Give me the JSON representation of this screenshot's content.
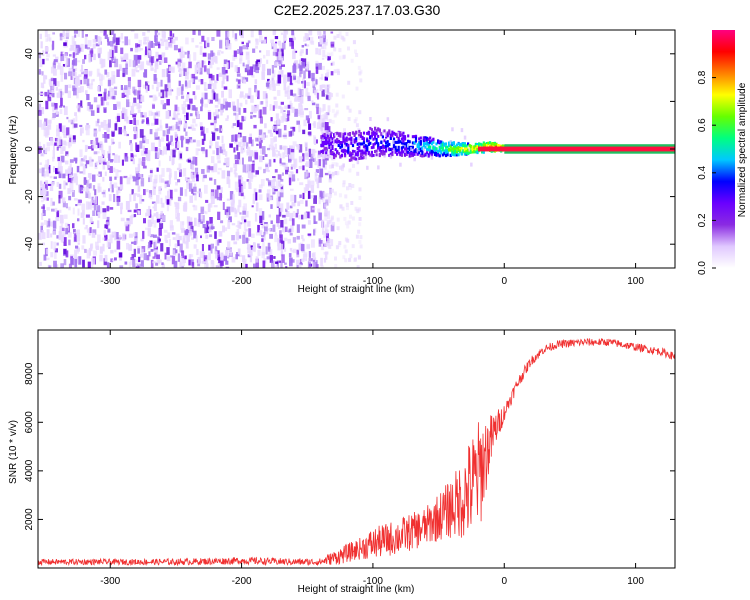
{
  "figure_title": "C2E2.2025.237.17.03.G30",
  "chart_data": [
    {
      "type": "heatmap",
      "name": "spectrogram",
      "xlabel": "Height of straight line (km)",
      "ylabel": "Frequency (Hz)",
      "xlim": [
        -355,
        130
      ],
      "ylim": [
        -50,
        50
      ],
      "x_ticks": [
        -300,
        -200,
        -100,
        0,
        100
      ],
      "y_ticks": [
        -40,
        -20,
        0,
        20,
        40
      ],
      "noise_region_x": [
        -355,
        -140
      ],
      "signal_onset_x": -140,
      "signal_track": {
        "x": [
          -140,
          -120,
          -100,
          -80,
          -60,
          -40,
          -25,
          -10,
          0,
          130
        ],
        "freq_center": [
          2,
          1,
          3,
          2,
          1,
          0,
          0,
          1,
          0,
          0
        ],
        "freq_halfwidth": [
          5,
          6,
          6,
          5,
          4,
          3,
          2,
          2,
          1,
          1
        ],
        "normalized_amplitude": [
          0.3,
          0.35,
          0.35,
          0.4,
          0.5,
          0.65,
          0.8,
          0.9,
          0.95,
          0.95
        ]
      },
      "colorbar": {
        "label": "Normalized spectral amplitude",
        "range": [
          0,
          1
        ],
        "ticks": [
          0.0,
          0.2,
          0.4,
          0.6,
          0.8
        ],
        "colors": [
          "#ffffff",
          "#e0c8ff",
          "#8a2be2",
          "#6a00ff",
          "#0000ff",
          "#00c8ff",
          "#00ff80",
          "#66ff00",
          "#ffff00",
          "#ff8000",
          "#ff0000",
          "#ff0080"
        ]
      }
    },
    {
      "type": "line",
      "name": "snr",
      "xlabel": "Height of straight line (km)",
      "ylabel": "SNR (10 * v/v)",
      "xlim": [
        -355,
        130
      ],
      "ylim": [
        0,
        9800
      ],
      "x_ticks": [
        -300,
        -200,
        -100,
        0,
        100
      ],
      "y_ticks": [
        2000,
        4000,
        6000,
        8000
      ],
      "color": "#f03030",
      "series": [
        {
          "name": "SNR",
          "x": [
            -355,
            -300,
            -250,
            -200,
            -160,
            -140,
            -125,
            -110,
            -100,
            -80,
            -60,
            -45,
            -35,
            -25,
            -18,
            -12,
            -6,
            0,
            10,
            20,
            30,
            40,
            60,
            80,
            100,
            120,
            130
          ],
          "y": [
            250,
            250,
            250,
            300,
            250,
            250,
            500,
            800,
            1000,
            1300,
            1700,
            2300,
            2700,
            3300,
            4000,
            5000,
            5800,
            6400,
            7600,
            8500,
            9000,
            9200,
            9300,
            9300,
            9100,
            8900,
            8700
          ],
          "spread": [
            120,
            120,
            130,
            150,
            140,
            150,
            350,
            450,
            650,
            750,
            800,
            1100,
            1500,
            2200,
            2300,
            1300,
            700,
            350,
            250,
            200,
            180,
            170,
            160,
            160,
            160,
            160,
            160
          ]
        }
      ]
    }
  ]
}
